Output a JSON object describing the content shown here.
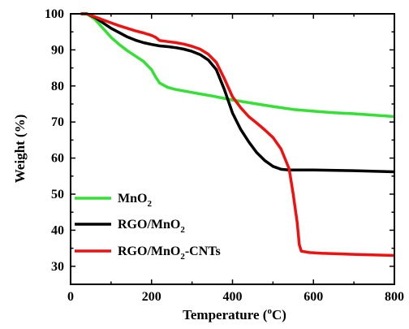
{
  "chart_data": {
    "type": "line",
    "xlabel": "Temperature (°C)",
    "xlabel_main": "Temperature (",
    "xlabel_sup": "o",
    "xlabel_end": "C)",
    "ylabel": "Weight (%)",
    "xlim": [
      0,
      800
    ],
    "ylim": [
      25,
      100
    ],
    "xticks": [
      0,
      200,
      400,
      600,
      800
    ],
    "yticks": [
      30,
      40,
      50,
      60,
      70,
      80,
      90,
      100
    ],
    "grid": false,
    "legend_position": "bottom-left",
    "series": [
      {
        "name": "MnO2",
        "label_main": "MnO",
        "label_sub": "2",
        "label_suffix": "",
        "color": "#33e133",
        "points": [
          [
            25,
            100
          ],
          [
            40,
            100
          ],
          [
            60,
            98.5
          ],
          [
            80,
            96
          ],
          [
            100,
            93.5
          ],
          [
            120,
            91.5
          ],
          [
            140,
            89.8
          ],
          [
            160,
            88.3
          ],
          [
            180,
            86.8
          ],
          [
            200,
            84.5
          ],
          [
            210,
            82.5
          ],
          [
            220,
            80.8
          ],
          [
            240,
            79.6
          ],
          [
            260,
            79
          ],
          [
            300,
            78.2
          ],
          [
            350,
            77.2
          ],
          [
            400,
            76.1
          ],
          [
            450,
            75.2
          ],
          [
            500,
            74.3
          ],
          [
            550,
            73.5
          ],
          [
            600,
            73
          ],
          [
            650,
            72.6
          ],
          [
            700,
            72.3
          ],
          [
            750,
            71.9
          ],
          [
            800,
            71.5
          ]
        ]
      },
      {
        "name": "RGO/MnO2",
        "label_main": "RGO/MnO",
        "label_sub": "2",
        "label_suffix": "",
        "color": "#000000",
        "points": [
          [
            25,
            100
          ],
          [
            40,
            100
          ],
          [
            60,
            99
          ],
          [
            80,
            97.5
          ],
          [
            100,
            96
          ],
          [
            120,
            94.8
          ],
          [
            140,
            93.6
          ],
          [
            160,
            92.7
          ],
          [
            180,
            92
          ],
          [
            200,
            91.5
          ],
          [
            220,
            91.1
          ],
          [
            240,
            90.9
          ],
          [
            260,
            90.6
          ],
          [
            280,
            90.2
          ],
          [
            300,
            89.6
          ],
          [
            320,
            88.7
          ],
          [
            340,
            87.2
          ],
          [
            360,
            84.5
          ],
          [
            380,
            79
          ],
          [
            400,
            72.5
          ],
          [
            420,
            68
          ],
          [
            440,
            64.5
          ],
          [
            460,
            61.5
          ],
          [
            480,
            59.3
          ],
          [
            500,
            57.7
          ],
          [
            520,
            56.9
          ],
          [
            540,
            56.7
          ],
          [
            560,
            56.7
          ],
          [
            600,
            56.7
          ],
          [
            700,
            56.5
          ],
          [
            800,
            56.2
          ]
        ]
      },
      {
        "name": "RGO/MnO2-CNTs",
        "label_main": "RGO/MnO",
        "label_sub": "2",
        "label_suffix": "-CNTs",
        "color": "#f01010",
        "points": [
          [
            25,
            100
          ],
          [
            40,
            100
          ],
          [
            60,
            99.2
          ],
          [
            80,
            98.3
          ],
          [
            100,
            97.5
          ],
          [
            120,
            96.7
          ],
          [
            140,
            96
          ],
          [
            160,
            95.3
          ],
          [
            180,
            94.7
          ],
          [
            200,
            94
          ],
          [
            210,
            93.5
          ],
          [
            220,
            92.6
          ],
          [
            240,
            92.3
          ],
          [
            260,
            92
          ],
          [
            280,
            91.6
          ],
          [
            300,
            91
          ],
          [
            320,
            90.2
          ],
          [
            340,
            88.8
          ],
          [
            360,
            86.5
          ],
          [
            380,
            82
          ],
          [
            400,
            77
          ],
          [
            420,
            74
          ],
          [
            440,
            71.5
          ],
          [
            460,
            69.7
          ],
          [
            480,
            67.8
          ],
          [
            500,
            65.7
          ],
          [
            520,
            62.5
          ],
          [
            540,
            57
          ],
          [
            550,
            50
          ],
          [
            560,
            42
          ],
          [
            565,
            36
          ],
          [
            570,
            34.2
          ],
          [
            590,
            33.8
          ],
          [
            620,
            33.6
          ],
          [
            700,
            33.3
          ],
          [
            800,
            33
          ]
        ]
      }
    ]
  }
}
